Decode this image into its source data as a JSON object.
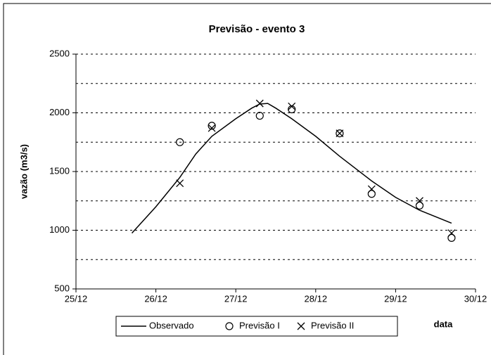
{
  "chart_data": {
    "type": "line",
    "title": "Previsão - evento 3",
    "xlabel": "data",
    "ylabel": "vazão (m3/s)",
    "xlim": [
      25,
      30
    ],
    "xticks": [
      {
        "value": 25,
        "label": "25/12"
      },
      {
        "value": 26,
        "label": "26/12"
      },
      {
        "value": 27,
        "label": "27/12"
      },
      {
        "value": 28,
        "label": "28/12"
      },
      {
        "value": 29,
        "label": "29/12"
      },
      {
        "value": 30,
        "label": "30/12"
      }
    ],
    "ylim": [
      500,
      2500
    ],
    "yticks": [
      500,
      1000,
      1500,
      2000,
      2500
    ],
    "yminor_grid": [
      750,
      1250,
      1750,
      2250
    ],
    "grid": true,
    "legend": "bottom",
    "series": [
      {
        "name": "Observado",
        "color": "#000000",
        "marker": "none",
        "x": [
          25.7,
          26.0,
          26.3,
          26.5,
          26.7,
          27.0,
          27.2,
          27.3,
          27.4,
          27.5,
          27.7,
          28.0,
          28.3,
          28.7,
          29.0,
          29.3,
          29.7
        ],
        "values": [
          975,
          1200,
          1450,
          1650,
          1800,
          1950,
          2040,
          2075,
          2080,
          2040,
          1950,
          1800,
          1630,
          1420,
          1280,
          1170,
          1060
        ]
      },
      {
        "name": "Previsão I",
        "color": "#000000",
        "marker": "circle",
        "x": [
          26.3,
          26.7,
          27.3,
          27.7,
          28.3,
          28.7,
          29.3,
          29.7
        ],
        "values": [
          1750,
          1890,
          1975,
          2030,
          1825,
          1310,
          1210,
          935
        ]
      },
      {
        "name": "Previsão II",
        "color": "#000000",
        "marker": "x",
        "x": [
          26.3,
          26.7,
          27.3,
          27.7,
          28.3,
          28.7,
          29.3,
          29.7
        ],
        "values": [
          1400,
          1870,
          2080,
          2055,
          1825,
          1350,
          1250,
          975
        ]
      }
    ]
  }
}
